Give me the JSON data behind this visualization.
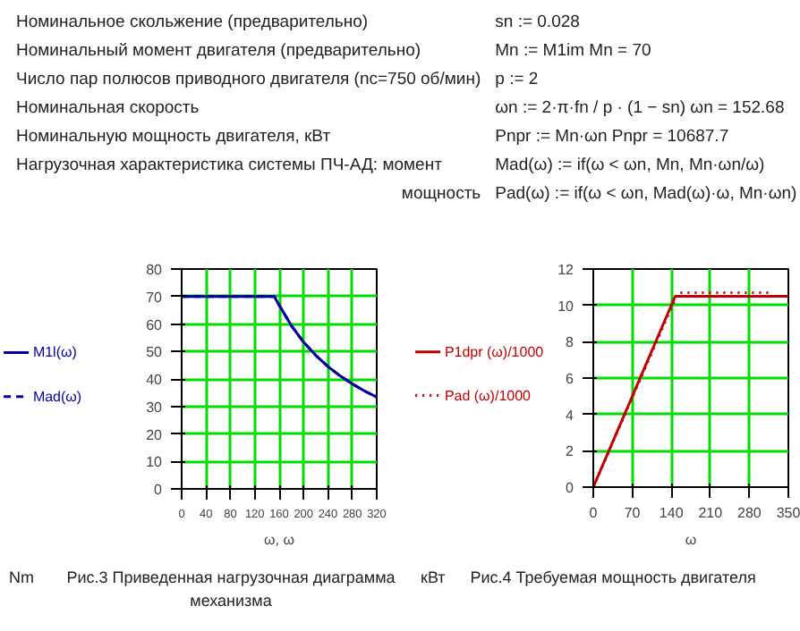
{
  "chart_data": [
    {
      "type": "other",
      "annotations": [
        "Номинальное скольжение (предварительно)",
        "sn := 0.028",
        "Номинальный момент двигателя (предварительно)",
        "Mn := M1im      Mn = 70",
        "Число пар полюсов приводного двигателя (nc=750 об/мин)",
        "p := 2",
        "Номинальная скорость",
        "ωn := 2·π·fn / p · (1 − sn)    ωn = 152.68",
        "Номинальную мощность двигателя, кВт",
        "Pnpr := Mn·ωn     Pnpr = 10687.7",
        "Нагрузочная характеристика системы ПЧ-АД:  момент",
        "Mad(ω) := if(ω < ωn, Mn, Mn·ωn/ω)",
        "мощность",
        "Pad(ω) := if(ω < ωn, Mad(ω)·ω, Mn·ωn)"
      ]
    },
    {
      "type": "line",
      "xlabel": "ω, ω",
      "annotations": [
        "Nm",
        "Рис.3 Приведенная нагрузочная диаграмма механизма"
      ],
      "xlim": [
        0,
        320
      ],
      "ylim": [
        0,
        80
      ],
      "xticks": [
        0,
        40,
        80,
        120,
        160,
        200,
        240,
        280,
        320
      ],
      "yticks": [
        0,
        10,
        20,
        30,
        40,
        50,
        60,
        70,
        80
      ],
      "grid": true,
      "legend": "left",
      "series": [
        {
          "name": "M1l(ω)",
          "color": "#0000a0",
          "line_style": "solid",
          "x": [
            0,
            40,
            80,
            120,
            152,
            160,
            180,
            200,
            220,
            240,
            260,
            280,
            300,
            320
          ],
          "values": [
            70,
            70,
            70,
            70,
            70,
            66.8,
            59.4,
            53.4,
            48.6,
            44.5,
            41.1,
            38.2,
            35.6,
            33.4
          ]
        },
        {
          "name": "Mad(ω)",
          "color": "#0000a0",
          "line_style": "dashed",
          "x": [
            0,
            40,
            80,
            120,
            152,
            160,
            180,
            200,
            220,
            240,
            260,
            280,
            300,
            320
          ],
          "values": [
            70,
            70,
            70,
            70,
            70,
            66.8,
            59.4,
            53.4,
            48.6,
            44.5,
            41.1,
            38.2,
            35.6,
            33.4
          ]
        }
      ]
    },
    {
      "type": "line",
      "xlabel": "ω",
      "annotations": [
        "кВт",
        "Рис.4 Требуемая мощность двигателя"
      ],
      "xlim": [
        0,
        350
      ],
      "ylim": [
        0,
        12
      ],
      "xticks": [
        0,
        70,
        140,
        210,
        280,
        350
      ],
      "yticks": [
        0,
        2,
        4,
        6,
        8,
        10,
        12
      ],
      "grid": true,
      "legend": "left",
      "series": [
        {
          "name": "P1dpr (ω)/1000",
          "color": "#c00000",
          "line_style": "solid",
          "x": [
            0,
            147,
            350
          ],
          "values": [
            0,
            10.5,
            10.5
          ]
        },
        {
          "name": "Pad (ω)/1000",
          "color": "#c00000",
          "line_style": "dotted",
          "x": [
            0,
            152,
            320
          ],
          "values": [
            0,
            10.7,
            10.7
          ]
        }
      ]
    }
  ]
}
